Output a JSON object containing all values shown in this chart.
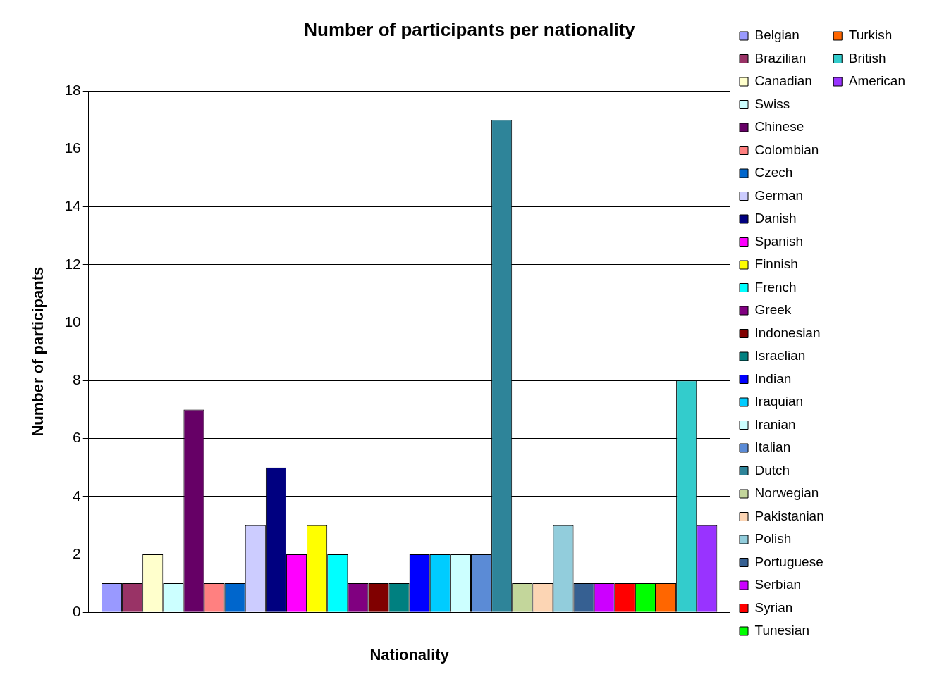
{
  "chart_data": {
    "type": "bar",
    "title": "Number of participants per nationality",
    "xlabel": "Nationality",
    "ylabel": "Number of participants",
    "categories": [
      null
    ],
    "ylim": [
      0,
      18
    ],
    "yticks": [
      0,
      2,
      4,
      6,
      8,
      10,
      12,
      14,
      16,
      18
    ],
    "grid": "y",
    "legend": "right",
    "series": [
      {
        "name": "Belgian",
        "color": "#9999ff",
        "values": [
          1
        ]
      },
      {
        "name": "Brazilian",
        "color": "#993366",
        "values": [
          1
        ]
      },
      {
        "name": "Canadian",
        "color": "#ffffcc",
        "values": [
          2
        ]
      },
      {
        "name": "Swiss",
        "color": "#ccffff",
        "values": [
          1
        ]
      },
      {
        "name": "Chinese",
        "color": "#660066",
        "values": [
          7
        ]
      },
      {
        "name": "Colombian",
        "color": "#ff8080",
        "values": [
          1
        ]
      },
      {
        "name": "Czech",
        "color": "#0066cc",
        "values": [
          1
        ]
      },
      {
        "name": "German",
        "color": "#ccccff",
        "values": [
          3
        ]
      },
      {
        "name": "Danish",
        "color": "#000080",
        "values": [
          5
        ]
      },
      {
        "name": "Spanish",
        "color": "#ff00ff",
        "values": [
          2
        ]
      },
      {
        "name": "Finnish",
        "color": "#ffff00",
        "values": [
          3
        ]
      },
      {
        "name": "French",
        "color": "#00ffff",
        "values": [
          2
        ]
      },
      {
        "name": "Greek",
        "color": "#800080",
        "values": [
          1
        ]
      },
      {
        "name": "Indonesian",
        "color": "#800000",
        "values": [
          1
        ]
      },
      {
        "name": "Israelian",
        "color": "#008080",
        "values": [
          1
        ]
      },
      {
        "name": "Indian",
        "color": "#0000ff",
        "values": [
          2
        ]
      },
      {
        "name": "Iraquian",
        "color": "#00ccff",
        "values": [
          2
        ]
      },
      {
        "name": "Iranian",
        "color": "#ccffff",
        "values": [
          2
        ]
      },
      {
        "name": "Italian",
        "color": "#5b8bd6",
        "values": [
          2
        ]
      },
      {
        "name": "Dutch",
        "color": "#2e8499",
        "values": [
          17
        ]
      },
      {
        "name": "Norwegian",
        "color": "#c3d69b",
        "values": [
          1
        ]
      },
      {
        "name": "Pakistanian",
        "color": "#fcd5b4",
        "values": [
          1
        ]
      },
      {
        "name": "Polish",
        "color": "#92cddc",
        "values": [
          3
        ]
      },
      {
        "name": "Portuguese",
        "color": "#366092",
        "values": [
          1
        ]
      },
      {
        "name": "Serbian",
        "color": "#cc00ff",
        "values": [
          1
        ]
      },
      {
        "name": "Syrian",
        "color": "#ff0000",
        "values": [
          1
        ]
      },
      {
        "name": "Tunesian",
        "color": "#00ff00",
        "values": [
          1
        ]
      },
      {
        "name": "Turkish",
        "color": "#ff6600",
        "values": [
          1
        ]
      },
      {
        "name": "British",
        "color": "#33cccc",
        "values": [
          8
        ]
      },
      {
        "name": "American",
        "color": "#9933ff",
        "values": [
          3
        ]
      }
    ]
  }
}
